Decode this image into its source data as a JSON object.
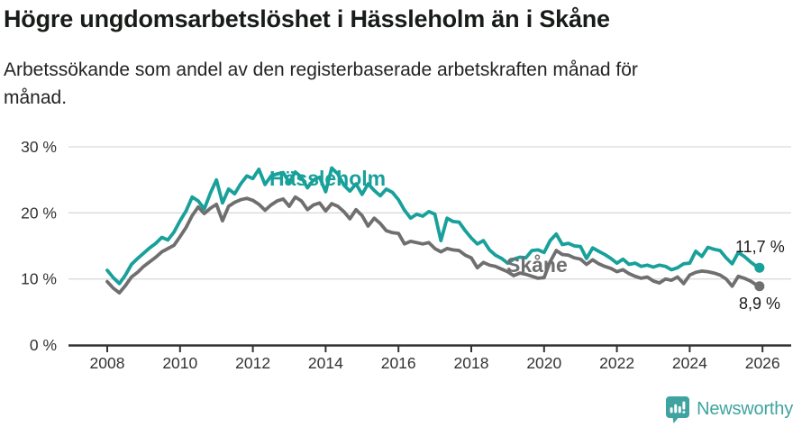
{
  "header": {
    "title": "Högre ungdomsarbetslöshet i Hässleholm än i Skåne",
    "subtitle": "Arbetssökande som andel av den registerbaserade arbetskraften månad för månad."
  },
  "chart_data": {
    "type": "line",
    "title": "Högre ungdomsarbetslöshet i Hässleholm än i Skåne",
    "xlabel": "",
    "ylabel": "",
    "ylim": [
      0,
      30
    ],
    "xlim": [
      2007,
      2026.8
    ],
    "grid": "horizontal",
    "legend_position": "inline-labels",
    "y_axis": {
      "ticks": [
        {
          "value": 0,
          "label": "0 %"
        },
        {
          "value": 10,
          "label": "10 %"
        },
        {
          "value": 20,
          "label": "20 %"
        },
        {
          "value": 30,
          "label": "30 %"
        }
      ]
    },
    "x_axis": {
      "ticks": [
        {
          "value": 2008,
          "label": "2008"
        },
        {
          "value": 2010,
          "label": "2010"
        },
        {
          "value": 2012,
          "label": "2012"
        },
        {
          "value": 2014,
          "label": "2014"
        },
        {
          "value": 2016,
          "label": "2016"
        },
        {
          "value": 2018,
          "label": "2018"
        },
        {
          "value": 2020,
          "label": "2020"
        },
        {
          "value": 2022,
          "label": "2022"
        },
        {
          "value": 2024,
          "label": "2024"
        },
        {
          "value": 2026,
          "label": "2026"
        }
      ]
    },
    "x": [
      2008,
      2008.167,
      2008.333,
      2008.5,
      2008.667,
      2008.833,
      2009,
      2009.167,
      2009.333,
      2009.5,
      2009.667,
      2009.833,
      2010,
      2010.167,
      2010.333,
      2010.5,
      2010.667,
      2010.833,
      2011,
      2011.167,
      2011.333,
      2011.5,
      2011.667,
      2011.833,
      2012,
      2012.167,
      2012.333,
      2012.5,
      2012.667,
      2012.833,
      2013,
      2013.167,
      2013.333,
      2013.5,
      2013.667,
      2013.833,
      2014,
      2014.167,
      2014.333,
      2014.5,
      2014.667,
      2014.833,
      2015,
      2015.167,
      2015.333,
      2015.5,
      2015.667,
      2015.833,
      2016,
      2016.167,
      2016.333,
      2016.5,
      2016.667,
      2016.833,
      2017,
      2017.167,
      2017.333,
      2017.5,
      2017.667,
      2017.833,
      2018,
      2018.167,
      2018.333,
      2018.5,
      2018.667,
      2018.833,
      2019,
      2019.167,
      2019.333,
      2019.5,
      2019.667,
      2019.833,
      2020,
      2020.167,
      2020.333,
      2020.5,
      2020.667,
      2020.833,
      2021,
      2021.167,
      2021.333,
      2021.5,
      2021.667,
      2021.833,
      2022,
      2022.167,
      2022.333,
      2022.5,
      2022.667,
      2022.833,
      2023,
      2023.167,
      2023.333,
      2023.5,
      2023.667,
      2023.833,
      2024,
      2024.167,
      2024.333,
      2024.5,
      2024.667,
      2024.833,
      2025,
      2025.167,
      2025.333,
      2025.5,
      2025.667,
      2025.833,
      2025.917
    ],
    "series": [
      {
        "name": "Hässleholm",
        "color": "#18a09a",
        "end_label": "11,7 %",
        "end_value": 11.7,
        "values": [
          11.3,
          10.2,
          9.3,
          10.6,
          12.2,
          13.1,
          13.9,
          14.7,
          15.4,
          16.3,
          15.9,
          17.1,
          18.8,
          20.3,
          22.4,
          21.8,
          20.6,
          23.0,
          25.0,
          21.5,
          23.6,
          22.9,
          24.4,
          25.6,
          25.2,
          26.6,
          24.3,
          25.6,
          25.9,
          26.1,
          24.6,
          26.2,
          25.4,
          23.8,
          25.0,
          25.4,
          23.2,
          26.8,
          25.9,
          24.2,
          23.3,
          24.4,
          22.8,
          24.4,
          23.4,
          22.6,
          23.6,
          23.1,
          22.0,
          20.4,
          19.2,
          19.8,
          19.5,
          20.2,
          19.8,
          15.8,
          19.2,
          18.7,
          18.6,
          17.3,
          16.2,
          15.3,
          15.8,
          14.4,
          13.6,
          13.1,
          12.4,
          13.0,
          13.3,
          13.2,
          14.3,
          14.4,
          14.0,
          15.8,
          16.8,
          15.2,
          15.4,
          15.0,
          14.9,
          13.1,
          14.7,
          14.2,
          13.7,
          13.1,
          12.4,
          13.0,
          12.2,
          12.4,
          11.9,
          12.1,
          11.8,
          12.1,
          11.9,
          11.4,
          11.7,
          12.3,
          12.4,
          14.2,
          13.4,
          14.8,
          14.5,
          14.3,
          13.2,
          12.3,
          14.0,
          13.4,
          12.6,
          11.9,
          11.7
        ]
      },
      {
        "name": "Skåne",
        "color": "#6f6f6f",
        "end_label": "8,9 %",
        "end_value": 8.9,
        "values": [
          9.6,
          8.6,
          7.9,
          9.0,
          10.3,
          11.0,
          11.9,
          12.6,
          13.3,
          14.1,
          14.6,
          15.1,
          16.4,
          17.8,
          19.6,
          20.9,
          19.9,
          20.7,
          21.3,
          18.8,
          21.0,
          21.6,
          22.0,
          22.2,
          21.9,
          21.3,
          20.4,
          21.2,
          21.8,
          22.1,
          21.0,
          22.4,
          21.8,
          20.5,
          21.2,
          21.5,
          20.3,
          21.4,
          21.0,
          20.2,
          19.1,
          20.5,
          19.6,
          18.0,
          19.2,
          18.4,
          17.3,
          17.0,
          16.9,
          15.3,
          15.7,
          15.5,
          15.3,
          15.5,
          14.6,
          14.1,
          14.6,
          14.4,
          14.3,
          13.6,
          13.2,
          11.7,
          12.5,
          12.1,
          11.9,
          11.5,
          11.1,
          10.5,
          10.9,
          10.7,
          10.4,
          10.1,
          10.2,
          12.6,
          14.3,
          13.7,
          13.6,
          13.2,
          13.0,
          12.2,
          12.9,
          12.3,
          11.9,
          11.6,
          11.1,
          11.4,
          10.8,
          10.4,
          10.1,
          10.3,
          9.7,
          9.4,
          10.0,
          9.8,
          10.3,
          9.3,
          10.6,
          11.0,
          11.2,
          11.1,
          10.9,
          10.6,
          10.0,
          8.9,
          10.4,
          10.1,
          9.7,
          9.1,
          8.9
        ]
      }
    ]
  },
  "style": {
    "grid_color": "#dadada",
    "axis_color": "#333333",
    "tick_label_color": "#333333"
  },
  "footer": {
    "brand": "Newsworthy",
    "brand_color": "#3fa3a0"
  }
}
